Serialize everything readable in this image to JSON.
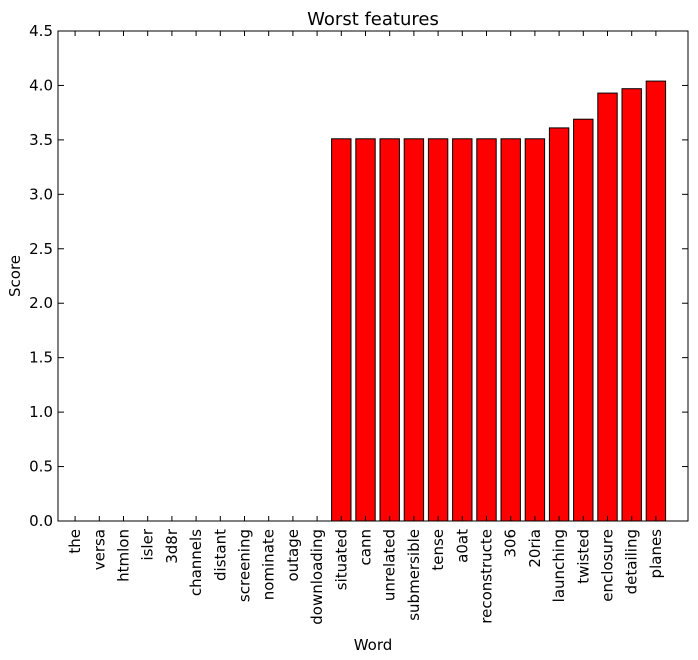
{
  "chart_data": {
    "type": "bar",
    "title": "Worst features",
    "xlabel": "Word",
    "ylabel": "Score",
    "ylim": [
      0,
      4.5
    ],
    "yticks": [
      "0.0",
      "0.5",
      "1.0",
      "1.5",
      "2.0",
      "2.5",
      "3.0",
      "3.5",
      "4.0",
      "4.5"
    ],
    "categories": [
      "the",
      "versa",
      "htmlon",
      "isler",
      "3d8r",
      "channels",
      "distant",
      "screening",
      "nominate",
      "outage",
      "downloading",
      "situated",
      "cann",
      "unrelated",
      "submersible",
      "tense",
      "a0at",
      "reconstructe",
      "306",
      "20ria",
      "launching",
      "twisted",
      "enclosure",
      "detailing",
      "planes"
    ],
    "values": [
      0,
      0,
      0,
      0,
      0,
      0,
      0,
      0,
      0,
      0,
      0,
      3.51,
      3.51,
      3.51,
      3.51,
      3.51,
      3.51,
      3.51,
      3.51,
      3.51,
      3.61,
      3.69,
      3.93,
      3.97,
      4.04
    ],
    "bar_color": "#ff0000",
    "grid": false
  }
}
